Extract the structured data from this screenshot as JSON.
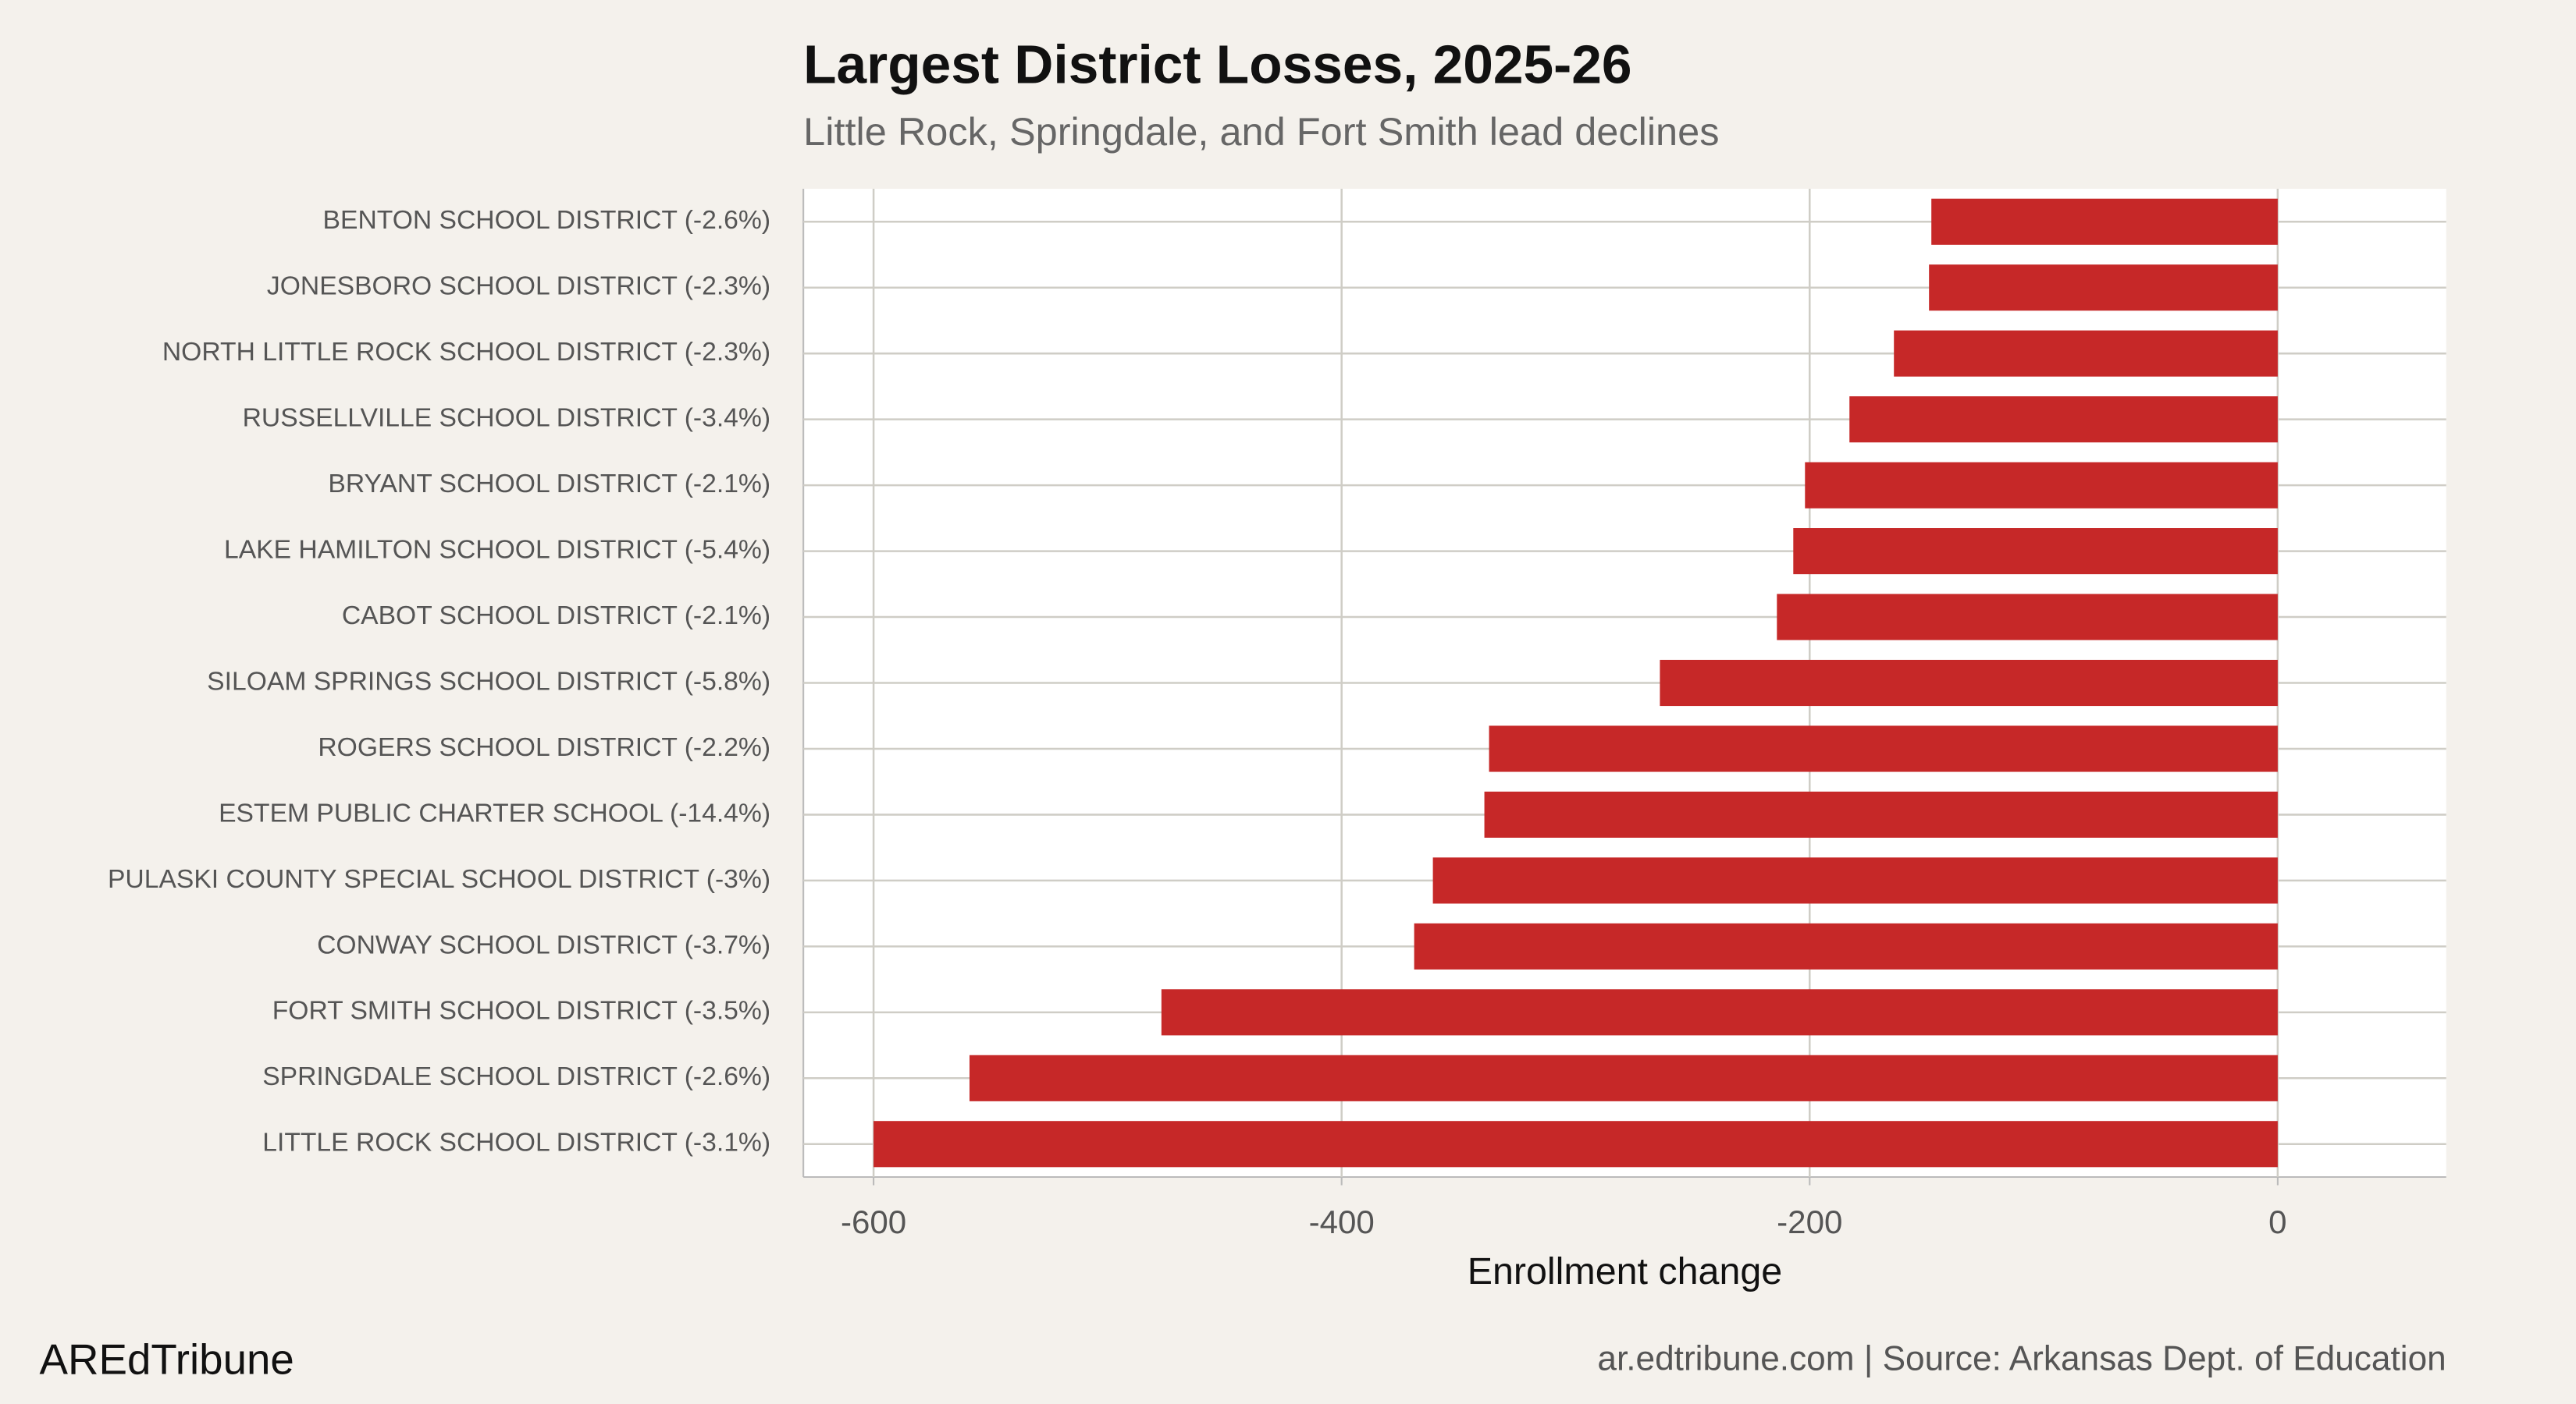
{
  "chart_data": {
    "type": "barh",
    "title": "Largest District Losses, 2025-26",
    "subtitle": "Little Rock, Springdale, and Fort Smith lead declines",
    "x_label": "Enrollment change",
    "brand": "AREdTribune",
    "source": "ar.edtribune.com | Source: Arkansas Dept. of Education",
    "categories": [
      "BENTON SCHOOL DISTRICT (-2.6%)",
      "JONESBORO SCHOOL DISTRICT (-2.3%)",
      "NORTH LITTLE ROCK SCHOOL DISTRICT (-2.3%)",
      "RUSSELLVILLE SCHOOL DISTRICT (-3.4%)",
      "BRYANT SCHOOL DISTRICT (-2.1%)",
      "LAKE HAMILTON SCHOOL DISTRICT (-5.4%)",
      "CABOT SCHOOL DISTRICT (-2.1%)",
      "SILOAM SPRINGS SCHOOL DISTRICT (-5.8%)",
      "ROGERS SCHOOL DISTRICT (-2.2%)",
      "ESTEM PUBLIC CHARTER SCHOOL (-14.4%)",
      "PULASKI COUNTY SPECIAL SCHOOL DISTRICT (-3%)",
      "CONWAY SCHOOL DISTRICT (-3.7%)",
      "FORT SMITH SCHOOL DISTRICT (-3.5%)",
      "SPRINGDALE SCHOOL DISTRICT (-2.6%)",
      "LITTLE ROCK SCHOOL DISTRICT (-3.1%)"
    ],
    "values": [
      -148,
      -149,
      -164,
      -183,
      -202,
      -207,
      -214,
      -264,
      -337,
      -339,
      -361,
      -369,
      -477,
      -559,
      -600
    ],
    "color": "#c62828",
    "xlim": [
      -630,
      72
    ],
    "xticks": [
      -600,
      -400,
      -200,
      0
    ],
    "grid": true
  }
}
